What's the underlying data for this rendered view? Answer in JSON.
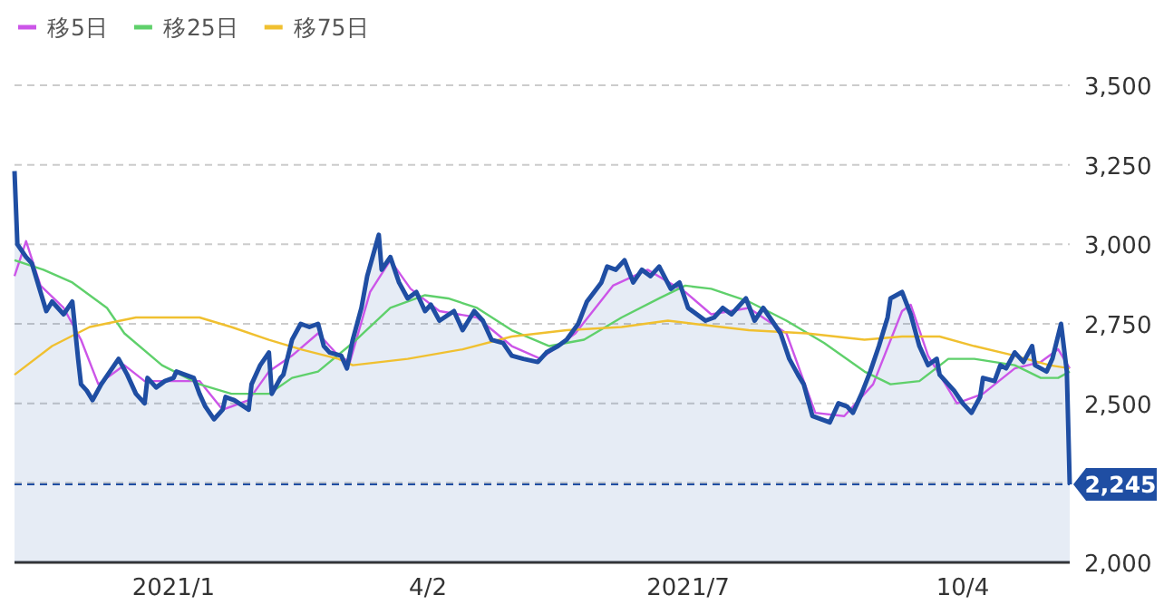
{
  "chart_data": {
    "type": "line",
    "xlim": [
      "2020-11-10",
      "2021-11-10"
    ],
    "ylim": [
      2000,
      3500
    ],
    "xticks": [
      {
        "value": "2021-01-04",
        "label": "2021/1"
      },
      {
        "value": "2021-04-02",
        "label": "4/2"
      },
      {
        "value": "2021-07-01",
        "label": "2021/7"
      },
      {
        "value": "2021-10-04",
        "label": "10/4"
      }
    ],
    "yticks": [
      {
        "value": 2000,
        "label": "2,000"
      },
      {
        "value": 2250,
        "label": null
      },
      {
        "value": 2500,
        "label": "2,500"
      },
      {
        "value": 2750,
        "label": "2,750"
      },
      {
        "value": 3000,
        "label": "3,000"
      },
      {
        "value": 3250,
        "label": "3,250"
      },
      {
        "value": 3500,
        "label": "3,500"
      }
    ],
    "grid": "y",
    "legend": "top left",
    "ref_lines": [
      {
        "axis": "y",
        "value": 2245,
        "label": "2,245",
        "color": "#1f4ea3",
        "line_style": "dashed"
      }
    ],
    "series": [
      {
        "type": "area",
        "color": "#1f4ea3",
        "x": [
          "2020-11-10",
          "2020-11-11",
          "2020-11-14",
          "2020-11-16",
          "2020-11-19",
          "2020-11-21",
          "2020-11-23",
          "2020-11-27",
          "2020-11-30",
          "2020-12-02",
          "2020-12-03",
          "2020-12-05",
          "2020-12-07",
          "2020-12-10",
          "2020-12-13",
          "2020-12-16",
          "2020-12-19",
          "2020-12-22",
          "2020-12-25",
          "2020-12-26",
          "2020-12-29",
          "2021-01-01",
          "2021-01-04",
          "2021-01-05",
          "2021-01-08",
          "2021-01-11",
          "2021-01-13",
          "2021-01-15",
          "2021-01-18",
          "2021-01-21",
          "2021-01-22",
          "2021-01-25",
          "2021-01-30",
          "2021-01-31",
          "2021-02-03",
          "2021-02-06",
          "2021-02-07",
          "2021-02-10",
          "2021-02-11",
          "2021-02-14",
          "2021-02-17",
          "2021-02-20",
          "2021-02-23",
          "2021-02-25",
          "2021-02-27",
          "2021-03-03",
          "2021-03-05",
          "2021-03-07",
          "2021-03-10",
          "2021-03-12",
          "2021-03-16",
          "2021-03-17",
          "2021-03-20",
          "2021-03-23",
          "2021-03-26",
          "2021-03-29",
          "2021-04-01",
          "2021-04-03",
          "2021-04-06",
          "2021-04-11",
          "2021-04-14",
          "2021-04-18",
          "2021-04-21",
          "2021-04-24",
          "2021-04-28",
          "2021-05-01",
          "2021-05-05",
          "2021-05-10",
          "2021-05-13",
          "2021-05-17",
          "2021-05-20",
          "2021-05-24",
          "2021-05-27",
          "2021-06-01",
          "2021-06-03",
          "2021-06-06",
          "2021-06-09",
          "2021-06-12",
          "2021-06-15",
          "2021-06-18",
          "2021-06-21",
          "2021-06-25",
          "2021-06-28",
          "2021-07-01",
          "2021-07-04",
          "2021-07-07",
          "2021-07-10",
          "2021-07-13",
          "2021-07-16",
          "2021-07-21",
          "2021-07-24",
          "2021-07-27",
          "2021-07-30",
          "2021-08-02",
          "2021-08-05",
          "2021-08-08",
          "2021-08-10",
          "2021-08-13",
          "2021-08-16",
          "2021-08-19",
          "2021-08-22",
          "2021-08-25",
          "2021-08-27",
          "2021-08-30",
          "2021-09-02",
          "2021-09-05",
          "2021-09-08",
          "2021-09-09",
          "2021-09-13",
          "2021-09-16",
          "2021-09-19",
          "2021-09-22",
          "2021-09-25",
          "2021-09-26",
          "2021-10-01",
          "2021-10-04",
          "2021-10-07",
          "2021-10-10",
          "2021-10-11",
          "2021-10-15",
          "2021-10-17",
          "2021-10-19",
          "2021-10-22",
          "2021-10-25",
          "2021-10-28",
          "2021-10-29",
          "2021-11-02",
          "2021-11-04",
          "2021-11-07",
          "2021-11-09",
          "2021-11-10"
        ],
        "values": [
          3230,
          3000,
          2960,
          2940,
          2850,
          2790,
          2820,
          2780,
          2820,
          2640,
          2560,
          2540,
          2510,
          2560,
          2600,
          2640,
          2590,
          2530,
          2500,
          2580,
          2550,
          2570,
          2580,
          2600,
          2590,
          2580,
          2530,
          2490,
          2450,
          2480,
          2520,
          2510,
          2480,
          2560,
          2620,
          2660,
          2530,
          2580,
          2590,
          2700,
          2750,
          2740,
          2750,
          2680,
          2660,
          2650,
          2610,
          2700,
          2800,
          2900,
          3030,
          2920,
          2960,
          2880,
          2830,
          2850,
          2790,
          2810,
          2760,
          2790,
          2730,
          2790,
          2760,
          2700,
          2690,
          2650,
          2640,
          2630,
          2660,
          2680,
          2700,
          2750,
          2820,
          2880,
          2930,
          2920,
          2950,
          2880,
          2920,
          2900,
          2930,
          2860,
          2880,
          2800,
          2780,
          2760,
          2770,
          2800,
          2780,
          2830,
          2760,
          2800,
          2760,
          2720,
          2640,
          2590,
          2560,
          2460,
          2450,
          2440,
          2500,
          2490,
          2470,
          2530,
          2600,
          2680,
          2770,
          2830,
          2850,
          2780,
          2680,
          2620,
          2640,
          2590,
          2540,
          2500,
          2470,
          2520,
          2580,
          2570,
          2620,
          2610,
          2660,
          2630,
          2680,
          2620,
          2600,
          2640,
          2750,
          2600,
          2245
        ]
      },
      {
        "name": "移5日",
        "color": "#cc55e8",
        "x": [
          "2020-11-10",
          "2020-11-14",
          "2020-11-19",
          "2020-11-27",
          "2020-12-03",
          "2020-12-09",
          "2020-12-18",
          "2020-12-25",
          "2021-01-03",
          "2021-01-13",
          "2021-01-21",
          "2021-01-30",
          "2021-02-06",
          "2021-02-14",
          "2021-02-23",
          "2021-03-02",
          "2021-03-06",
          "2021-03-13",
          "2021-03-20",
          "2021-03-27",
          "2021-04-06",
          "2021-04-19",
          "2021-05-01",
          "2021-05-11",
          "2021-05-23",
          "2021-06-05",
          "2021-06-17",
          "2021-06-30",
          "2021-07-09",
          "2021-07-22",
          "2021-08-04",
          "2021-08-14",
          "2021-08-24",
          "2021-09-03",
          "2021-09-13",
          "2021-09-16",
          "2021-09-22",
          "2021-10-02",
          "2021-10-11",
          "2021-10-22",
          "2021-10-31",
          "2021-11-06",
          "2021-11-10"
        ],
        "values": [
          2900,
          3010,
          2870,
          2800,
          2700,
          2560,
          2620,
          2570,
          2570,
          2570,
          2480,
          2510,
          2600,
          2650,
          2720,
          2650,
          2630,
          2850,
          2950,
          2860,
          2790,
          2770,
          2680,
          2640,
          2720,
          2870,
          2920,
          2850,
          2780,
          2800,
          2720,
          2470,
          2460,
          2560,
          2790,
          2810,
          2650,
          2500,
          2530,
          2610,
          2630,
          2670,
          2610
        ]
      },
      {
        "name": "移25日",
        "color": "#5fd06b",
        "x": [
          "2020-11-10",
          "2020-11-20",
          "2020-11-30",
          "2020-12-12",
          "2020-12-18",
          "2020-12-31",
          "2021-01-13",
          "2021-01-24",
          "2021-02-06",
          "2021-02-14",
          "2021-02-23",
          "2021-03-07",
          "2021-03-20",
          "2021-04-01",
          "2021-04-09",
          "2021-04-19",
          "2021-05-01",
          "2021-05-14",
          "2021-05-26",
          "2021-06-08",
          "2021-06-21",
          "2021-06-30",
          "2021-07-09",
          "2021-07-22",
          "2021-08-04",
          "2021-08-17",
          "2021-08-31",
          "2021-09-09",
          "2021-09-19",
          "2021-09-29",
          "2021-10-08",
          "2021-10-22",
          "2021-10-31",
          "2021-11-06",
          "2021-11-10"
        ],
        "values": [
          2950,
          2920,
          2880,
          2800,
          2720,
          2620,
          2560,
          2530,
          2530,
          2580,
          2600,
          2690,
          2800,
          2840,
          2830,
          2800,
          2730,
          2680,
          2700,
          2770,
          2830,
          2870,
          2860,
          2820,
          2760,
          2690,
          2600,
          2560,
          2570,
          2640,
          2640,
          2620,
          2580,
          2580,
          2600
        ]
      },
      {
        "name": "移75日",
        "color": "#f0c030",
        "x": [
          "2020-11-10",
          "2020-11-23",
          "2020-12-06",
          "2020-12-22",
          "2021-01-13",
          "2021-01-24",
          "2021-02-06",
          "2021-02-17",
          "2021-03-02",
          "2021-03-07",
          "2021-03-26",
          "2021-04-14",
          "2021-05-01",
          "2021-05-20",
          "2021-06-08",
          "2021-06-24",
          "2021-07-03",
          "2021-07-22",
          "2021-08-11",
          "2021-08-31",
          "2021-09-13",
          "2021-09-26",
          "2021-10-08",
          "2021-10-22",
          "2021-11-03",
          "2021-11-10"
        ],
        "values": [
          2590,
          2680,
          2740,
          2770,
          2770,
          2740,
          2700,
          2670,
          2640,
          2620,
          2640,
          2670,
          2710,
          2730,
          2740,
          2760,
          2750,
          2730,
          2720,
          2700,
          2710,
          2710,
          2680,
          2650,
          2620,
          2610
        ]
      }
    ]
  }
}
